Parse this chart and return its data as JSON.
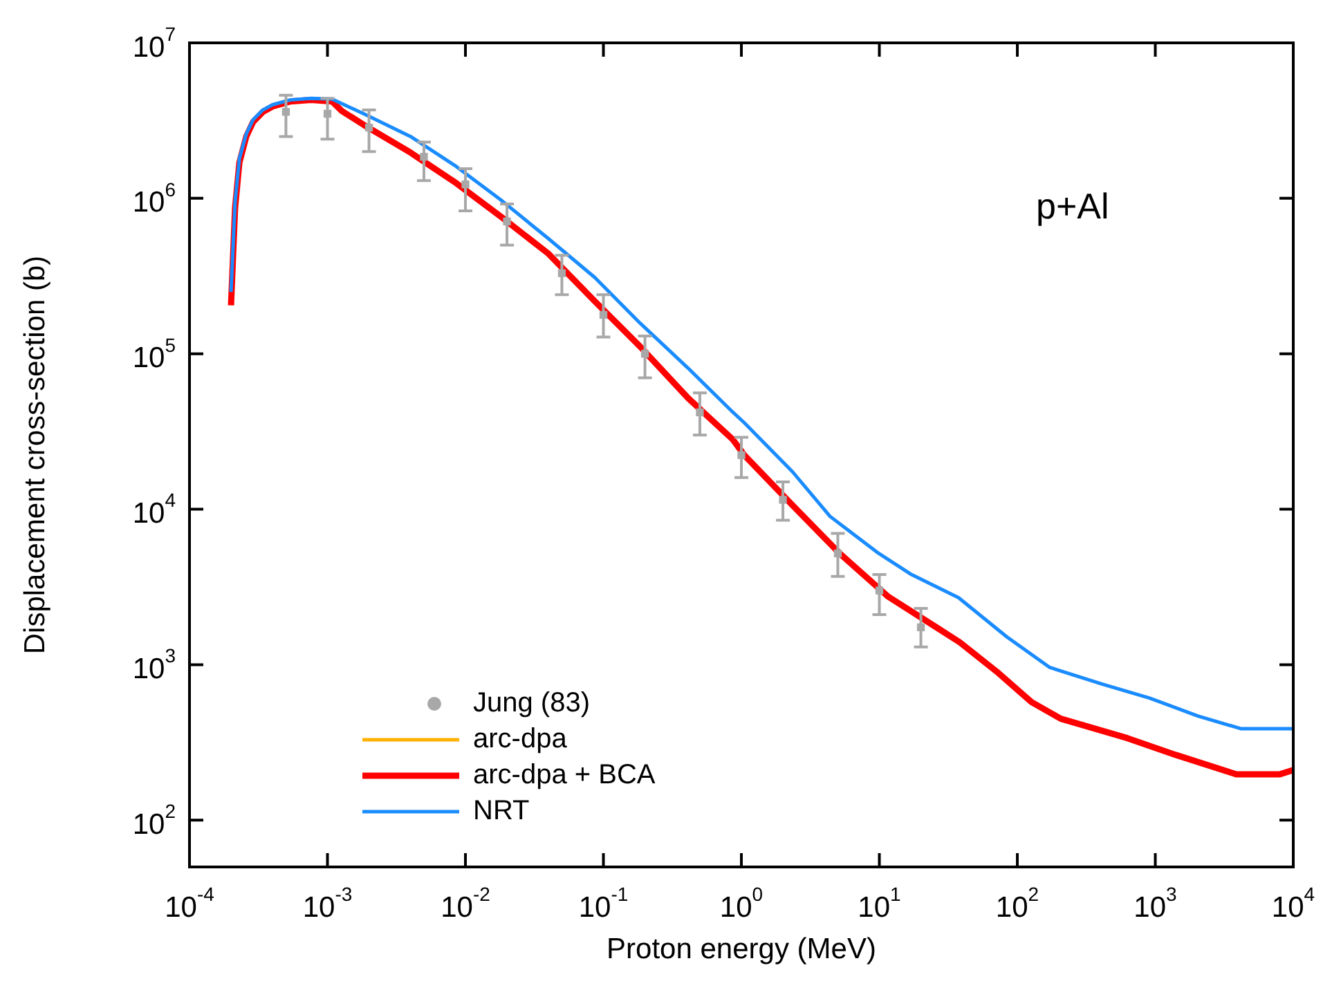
{
  "chart_data": {
    "type": "line",
    "xlabel": "Proton energy (MeV)",
    "ylabel": "Displacement cross-section (b)",
    "log": "xy",
    "grid": false,
    "legend": "bottom left",
    "annotations": [
      "p+Al"
    ],
    "xlim": [
      0.0001,
      10000
    ],
    "ylim": [
      50,
      10000000
    ],
    "xticks": [
      {
        "value": 0.0001,
        "label": "10$^{-4}$"
      },
      {
        "value": 0.001,
        "label": "10$^{-3}$"
      },
      {
        "value": 0.01,
        "label": "10$^{-2}$"
      },
      {
        "value": 0.1,
        "label": "10$^{-1}$"
      },
      {
        "value": 1,
        "label": "10$^{0}$"
      },
      {
        "value": 10,
        "label": "10$^{1}$"
      },
      {
        "value": 100,
        "label": "10$^{2}$"
      },
      {
        "value": 1000,
        "label": "10$^{3}$"
      },
      {
        "value": 10000,
        "label": "10$^{4}$"
      }
    ],
    "yticks": [
      {
        "value": 100,
        "label": "10$^{2}$"
      },
      {
        "value": 1000,
        "label": "10$^{3}$"
      },
      {
        "value": 10000,
        "label": "10$^{4}$"
      },
      {
        "value": 100000,
        "label": "10$^{5}$"
      },
      {
        "value": 1000000,
        "label": "10$^{6}$"
      },
      {
        "value": 10000000,
        "label": "10$^{7}$"
      }
    ],
    "series": [
      {
        "name": "Jung (83)",
        "type": "scatter",
        "marker": "square",
        "color": "#a8a8a8",
        "x": [
          0.0005,
          0.001,
          0.002,
          0.005,
          0.01,
          0.02,
          0.05,
          0.1,
          0.2,
          0.5,
          1,
          2,
          5,
          10,
          20
        ],
        "values": [
          3600000,
          3500000,
          2850000,
          1850000,
          1230000,
          710000,
          330000,
          178000,
          100000,
          42000,
          22300,
          11500,
          5200,
          3000,
          1740
        ],
        "errors": [
          [
            2500000,
            4600000
          ],
          [
            2400000,
            4400000
          ],
          [
            2000000,
            3700000
          ],
          [
            1300000,
            2300000
          ],
          [
            830000,
            1550000
          ],
          [
            500000,
            920000
          ],
          [
            240000,
            430000
          ],
          [
            128000,
            240000
          ],
          [
            70000,
            130000
          ],
          [
            30000,
            56000
          ],
          [
            16000,
            29000
          ],
          [
            8500,
            15000
          ],
          [
            3700,
            7000
          ],
          [
            2100,
            3800
          ],
          [
            1300,
            2300
          ]
        ]
      },
      {
        "name": "arc-dpa",
        "type": "line",
        "color": "#ffb000"
      },
      {
        "name": "arc-dpa + BCA",
        "type": "line",
        "color": "#ff0000",
        "x": [
          0.0002,
          0.000214,
          0.00023,
          0.000258,
          0.000289,
          0.00034,
          0.0004,
          0.00054,
          0.00076,
          0.00108,
          0.00127,
          0.00183,
          0.004,
          0.0086,
          0.0185,
          0.04,
          0.0865,
          0.185,
          0.41,
          0.87,
          1.05,
          2.35,
          5.15,
          11.6,
          25.9,
          38.4,
          73,
          127,
          207,
          627,
          1406,
          3880,
          7943,
          10000
        ],
        "values": [
          205000,
          870000,
          1700000,
          2500000,
          3100000,
          3600000,
          3900000,
          4200000,
          4300000,
          4200000,
          3650000,
          2970000,
          1970000,
          1250000,
          750000,
          440000,
          218000,
          111000,
          52000,
          28000,
          22300,
          10600,
          5200,
          2740,
          1740,
          1390,
          883,
          574,
          449,
          337,
          263,
          197,
          197,
          210
        ]
      },
      {
        "name": "NRT",
        "type": "line",
        "color": "#1a8cff",
        "x": [
          0.0002,
          0.000214,
          0.00023,
          0.000258,
          0.000289,
          0.00034,
          0.0004,
          0.00054,
          0.00076,
          0.00108,
          0.00183,
          0.004,
          0.0086,
          0.0185,
          0.04,
          0.0865,
          0.185,
          0.41,
          0.87,
          1.05,
          2.35,
          4.39,
          9.6,
          17.1,
          37.5,
          84,
          172,
          414,
          906,
          2032,
          4160,
          10000
        ],
        "values": [
          250000,
          950000,
          1800000,
          2600000,
          3200000,
          3700000,
          4000000,
          4300000,
          4400000,
          4350000,
          3500000,
          2500000,
          1600000,
          960000,
          550000,
          310000,
          157000,
          81000,
          42000,
          36000,
          17400,
          9000,
          5300,
          3800,
          2700,
          1510,
          960,
          750,
          611,
          468,
          388,
          388
        ]
      }
    ]
  }
}
